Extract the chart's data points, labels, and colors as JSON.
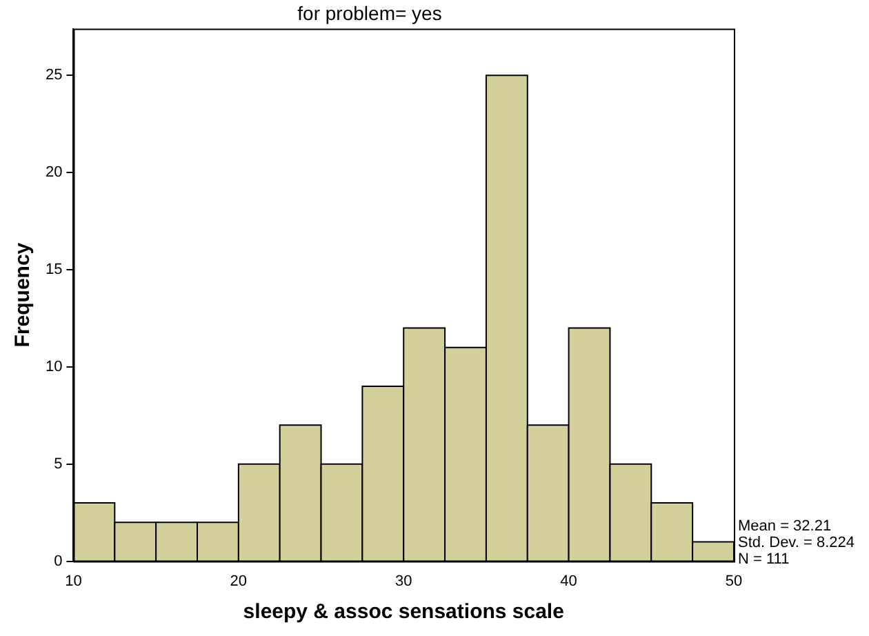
{
  "chart_data": {
    "type": "histogram",
    "title": "for problem= yes",
    "xlabel": "sleepy & assoc sensations scale",
    "ylabel": "Frequency",
    "bins": [
      10,
      12.5,
      15,
      17.5,
      20,
      22.5,
      25,
      27.5,
      30,
      32.5,
      35,
      37.5,
      40,
      42.5,
      45,
      47.5,
      50
    ],
    "values": [
      3,
      2,
      2,
      2,
      5,
      7,
      5,
      9,
      12,
      11,
      25,
      7,
      12,
      5,
      3,
      1
    ],
    "color": "#d4d09a",
    "xlim": [
      10,
      50
    ],
    "xticks": [
      10,
      20,
      30,
      40,
      50
    ],
    "ylim": [
      0,
      27.4
    ],
    "yticks": [
      0,
      5,
      10,
      15,
      20,
      25
    ],
    "grid": false,
    "legend": false,
    "annotations": [
      "Mean = 32.21",
      "Std. Dev. = 8.224",
      "N = 111"
    ]
  }
}
